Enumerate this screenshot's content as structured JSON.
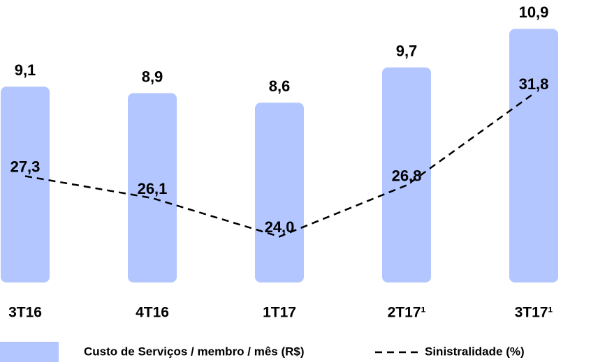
{
  "chart_data": {
    "type": "bar",
    "categories": [
      "3T16",
      "4T16",
      "1T17",
      "2T17¹",
      "3T17¹"
    ],
    "series": [
      {
        "name": "Custo de Serviços / membro / mês (R$)",
        "type": "bar",
        "color": "#b3c6ff",
        "values": [
          9.1,
          8.9,
          8.6,
          9.7,
          10.9
        ],
        "value_labels": [
          "9,1",
          "8,9",
          "8,6",
          "9,7",
          "10,9"
        ]
      },
      {
        "name": "Sinistralidade (%)",
        "type": "line",
        "axis": "y2",
        "color": "#000000",
        "values": [
          27.3,
          26.1,
          24.0,
          26.8,
          31.8
        ],
        "value_labels": [
          "27,3",
          "26,1",
          "24,0",
          "26,8",
          "31,8"
        ]
      }
    ],
    "ylim": [
      3,
      11.8
    ],
    "y2lim": [
      21.5,
      36.9
    ],
    "legend": "bottom"
  }
}
